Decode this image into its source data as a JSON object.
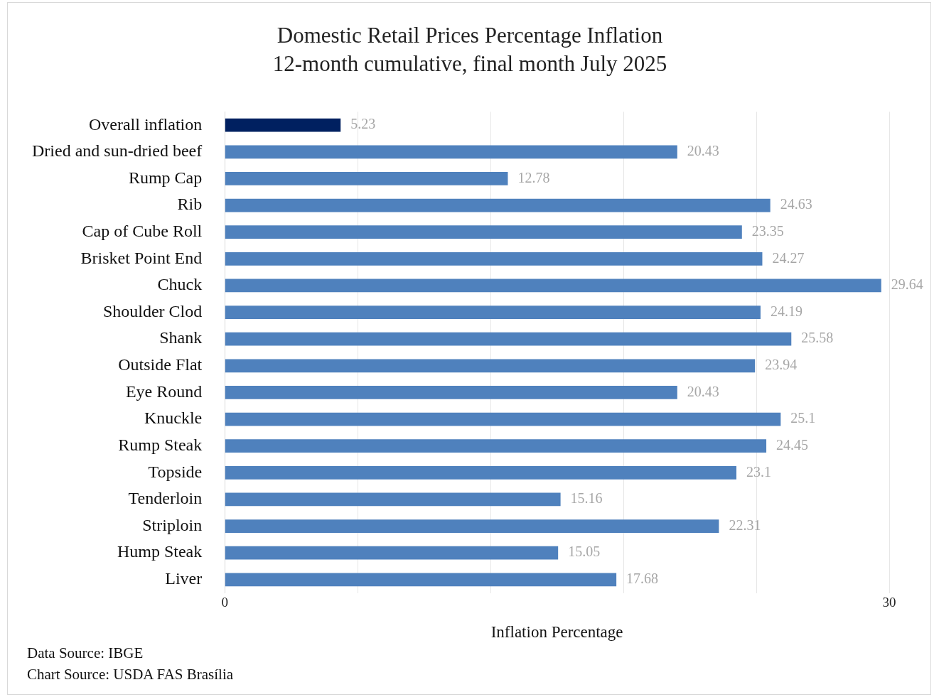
{
  "chart_data": {
    "type": "bar",
    "orientation": "horizontal",
    "title": "Domestic Retail Prices Percentage Inflation",
    "subtitle": "12-month cumulative, final month July 2025",
    "xlabel": "Inflation Percentage",
    "categories": [
      "Overall inflation",
      "Dried and sun-dried beef",
      "Rump Cap",
      "Rib",
      "Cap of Cube Roll",
      "Brisket Point End",
      "Chuck",
      "Shoulder Clod",
      "Shank",
      "Outside Flat",
      "Eye Round",
      "Knuckle",
      "Rump Steak",
      "Topside",
      "Tenderloin",
      "Striploin",
      "Hump Steak",
      "Liver"
    ],
    "values": [
      5.23,
      20.43,
      12.78,
      24.63,
      23.35,
      24.27,
      29.64,
      24.19,
      25.58,
      23.94,
      20.43,
      25.1,
      24.45,
      23.1,
      15.16,
      22.31,
      15.05,
      17.68
    ],
    "colors": [
      "#002060",
      "#4f81bd",
      "#4f81bd",
      "#4f81bd",
      "#4f81bd",
      "#4f81bd",
      "#4f81bd",
      "#4f81bd",
      "#4f81bd",
      "#4f81bd",
      "#4f81bd",
      "#4f81bd",
      "#4f81bd",
      "#4f81bd",
      "#4f81bd",
      "#4f81bd",
      "#4f81bd",
      "#4f81bd"
    ],
    "xlim": [
      0,
      30
    ],
    "xticks": [
      0,
      {
        "value": 6,
        "label": null
      },
      {
        "value": 12,
        "label": null
      },
      {
        "value": 18,
        "label": null
      },
      {
        "value": 24,
        "label": null
      },
      30
    ],
    "grid": "x",
    "legend": false,
    "data_labels": true,
    "annotations": [
      "Data Source: IBGE",
      "Chart Source: USDA FAS Brasília"
    ]
  }
}
